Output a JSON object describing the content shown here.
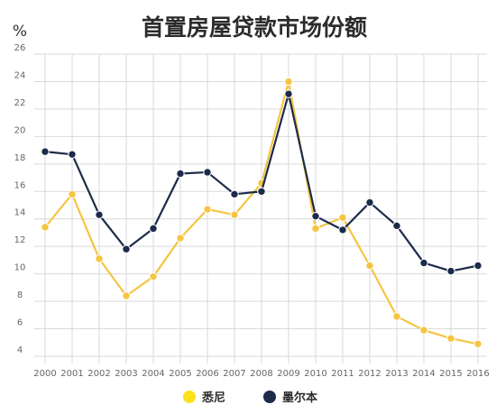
{
  "chart_data": {
    "type": "line",
    "title": "首置房屋贷款市场份额",
    "ylabel": "%",
    "xlabel": "",
    "ylim": [
      4,
      26
    ],
    "yticks": [
      4,
      6,
      8,
      10,
      12,
      14,
      16,
      18,
      20,
      22,
      24,
      26
    ],
    "categories": [
      "2000",
      "2001",
      "2002",
      "2003",
      "2004",
      "2005",
      "2006",
      "2007",
      "2008",
      "2009",
      "2010",
      "2011",
      "2012",
      "2013",
      "2014",
      "2015",
      "2016"
    ],
    "grid": true,
    "legend_position": "bottom",
    "series": [
      {
        "name": "悉尼",
        "color": "#f5c542",
        "legend_color": "#fbe21d",
        "values": [
          13.4,
          15.8,
          11.1,
          8.4,
          9.8,
          12.6,
          14.7,
          14.3,
          16.6,
          24.0,
          13.3,
          14.1,
          10.6,
          6.9,
          5.9,
          5.3,
          4.9
        ]
      },
      {
        "name": "墨尔本",
        "color": "#1c2b4a",
        "legend_color": "#1c2b4a",
        "values": [
          18.9,
          18.7,
          14.3,
          11.8,
          13.3,
          17.3,
          17.4,
          15.8,
          16.0,
          23.1,
          14.2,
          13.2,
          15.2,
          13.5,
          10.8,
          10.2,
          10.6
        ]
      }
    ]
  }
}
